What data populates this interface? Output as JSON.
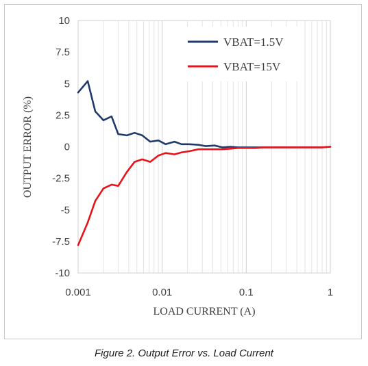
{
  "caption": "Figure 2. Output Error vs. Load Current",
  "chart_data": {
    "type": "line",
    "title": "",
    "xlabel": "LOAD CURRENT (A)",
    "ylabel": "OUTPUT ERROR (%)",
    "x_scale": "log",
    "xlim": [
      0.001,
      1
    ],
    "ylim": [
      -10,
      10
    ],
    "x_ticks": [
      "0.001",
      "0.01",
      "0.1",
      "1"
    ],
    "y_ticks": [
      "10",
      "7.5",
      "5",
      "2.5",
      "0",
      "-2.5",
      "-5",
      "-7.5",
      "-10"
    ],
    "grid": true,
    "legend_position": "top-right",
    "series": [
      {
        "name": "VBAT=1.5V",
        "color": "#1f3a6b",
        "x": [
          0.001,
          0.0013,
          0.0016,
          0.002,
          0.0025,
          0.003,
          0.0038,
          0.0047,
          0.0058,
          0.0072,
          0.009,
          0.011,
          0.014,
          0.017,
          0.021,
          0.027,
          0.033,
          0.042,
          0.052,
          0.065,
          0.08,
          0.1,
          0.13,
          0.16,
          0.2,
          0.3,
          0.5,
          0.8,
          1
        ],
        "y": [
          4.3,
          5.2,
          2.8,
          2.1,
          2.4,
          1.0,
          0.9,
          1.1,
          0.9,
          0.4,
          0.5,
          0.2,
          0.4,
          0.2,
          0.2,
          0.15,
          0.05,
          0.1,
          -0.05,
          0.0,
          -0.05,
          -0.05,
          -0.05,
          -0.05,
          -0.05,
          -0.05,
          -0.05,
          -0.05,
          0.0
        ]
      },
      {
        "name": "VBAT=15V",
        "color": "#e8141a",
        "x": [
          0.001,
          0.0013,
          0.0016,
          0.002,
          0.0025,
          0.003,
          0.0038,
          0.0047,
          0.0058,
          0.0072,
          0.009,
          0.011,
          0.014,
          0.017,
          0.021,
          0.027,
          0.033,
          0.042,
          0.052,
          0.065,
          0.08,
          0.1,
          0.13,
          0.16,
          0.2,
          0.3,
          0.5,
          0.8,
          1
        ],
        "y": [
          -7.8,
          -6.0,
          -4.3,
          -3.3,
          -3.0,
          -3.1,
          -2.0,
          -1.2,
          -1.0,
          -1.2,
          -0.7,
          -0.5,
          -0.6,
          -0.45,
          -0.35,
          -0.2,
          -0.2,
          -0.2,
          -0.2,
          -0.15,
          -0.1,
          -0.1,
          -0.1,
          -0.05,
          -0.05,
          -0.05,
          -0.05,
          -0.05,
          0.0
        ]
      }
    ]
  }
}
